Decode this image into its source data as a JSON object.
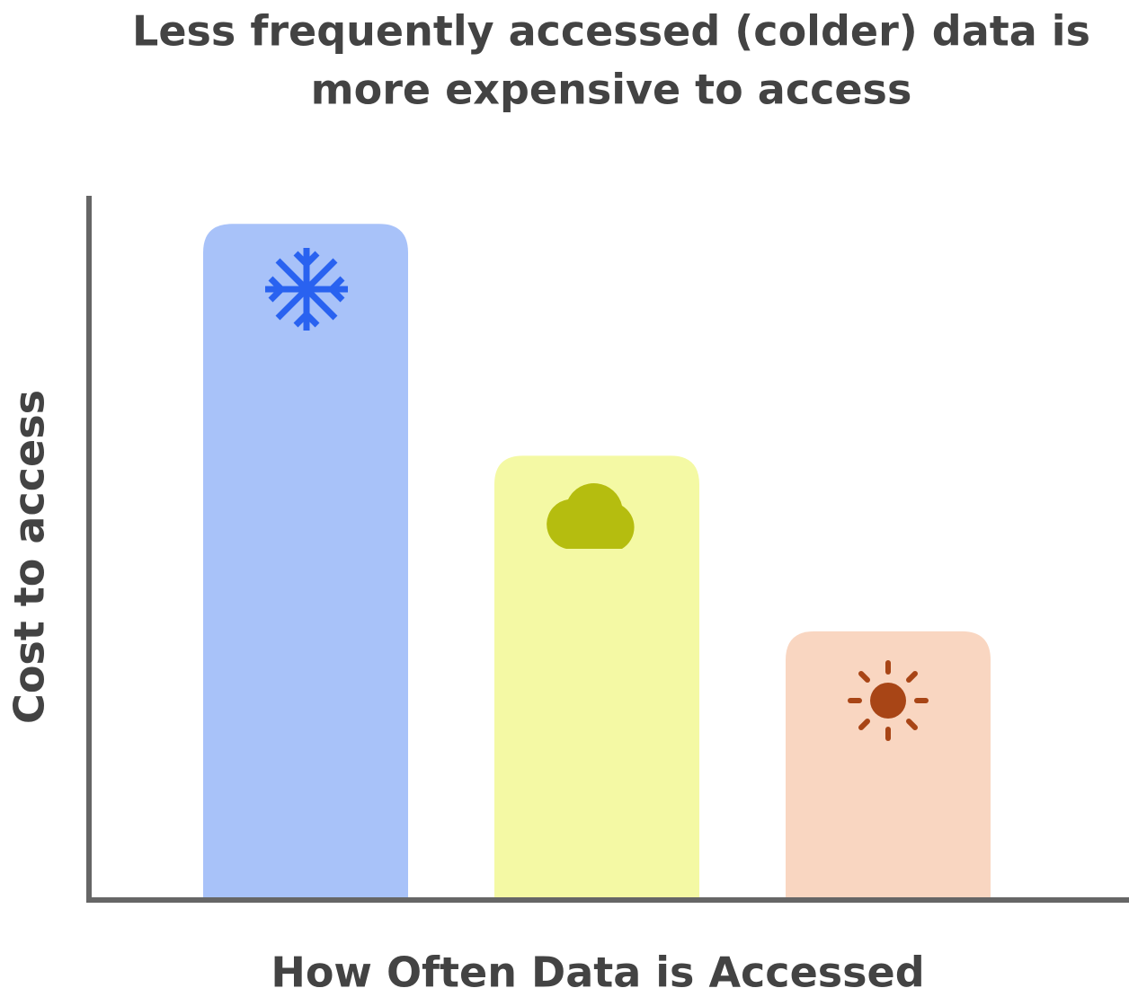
{
  "chart_data": {
    "type": "bar",
    "title": [
      "Less frequently accessed (colder) data is",
      "more expensive to access"
    ],
    "y_label": "Cost to access",
    "x_label": "How Often Data is Accessed",
    "categories": [
      null,
      null,
      null
    ],
    "values": [
      96,
      63,
      38
    ],
    "colors": [
      "#a8c2f9",
      "#f4f9a4",
      "#f9d6c1"
    ],
    "ylim": [
      0,
      100
    ]
  }
}
